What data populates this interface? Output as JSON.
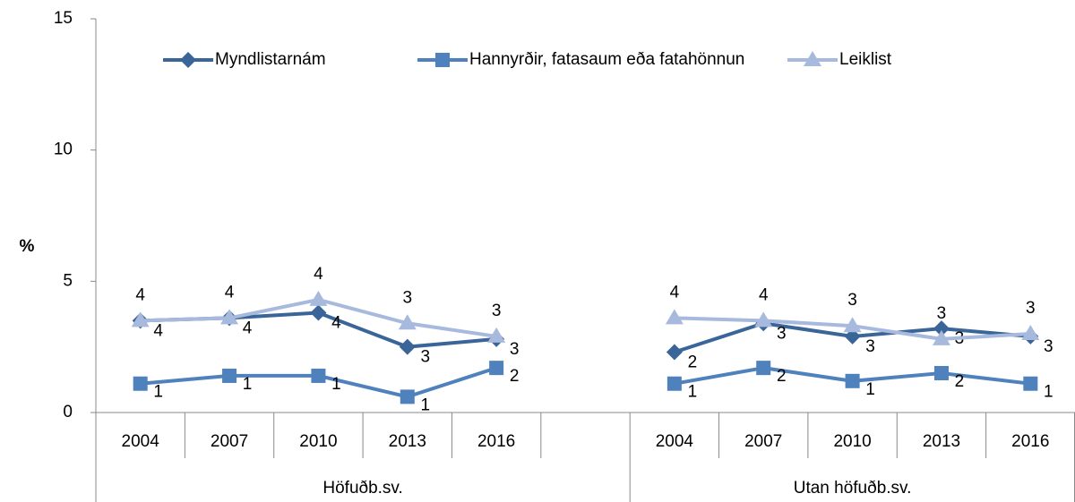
{
  "chart_data": {
    "type": "line",
    "y_label": "%",
    "categories": [
      "2004",
      "2007",
      "2010",
      "2013",
      "2016",
      null,
      "2004",
      "2007",
      "2010",
      "2013",
      "2016"
    ],
    "groups": [
      {
        "label": "Höfuðb.sv.",
        "span": 6
      },
      {
        "label": "Utan höfuðb.sv.",
        "span": 5
      }
    ],
    "series": [
      {
        "name": "Myndlistarnám",
        "color": "#3a6599",
        "marker": "diamond",
        "values": [
          3.5,
          3.6,
          3.8,
          2.5,
          2.8,
          null,
          2.3,
          3.4,
          2.9,
          3.2,
          2.9
        ],
        "value_labels": [
          "4",
          "4",
          "4",
          "3",
          "3",
          null,
          "2",
          "3",
          "3",
          "3",
          "3"
        ]
      },
      {
        "name": "Hannyrðir, fatasaum eða fatahönnun",
        "color": "#4f81bd",
        "marker": "square",
        "values": [
          1.1,
          1.4,
          1.4,
          0.6,
          1.7,
          null,
          1.1,
          1.7,
          1.2,
          1.5,
          1.1
        ],
        "value_labels": [
          "1",
          "1",
          "1",
          "1",
          "2",
          null,
          "1",
          "2",
          "1",
          "2",
          "1"
        ]
      },
      {
        "name": "Leiklist",
        "color": "#a7b9dd",
        "marker": "triangle",
        "values": [
          3.5,
          3.6,
          4.3,
          3.4,
          2.9,
          null,
          3.6,
          3.5,
          3.3,
          2.8,
          3.0
        ],
        "value_labels": [
          "4",
          "4",
          "4",
          "3",
          "3",
          null,
          "4",
          "4",
          "3",
          "3",
          "3"
        ]
      }
    ],
    "ylim": [
      0,
      15
    ],
    "yticks": [
      0,
      5,
      10,
      15
    ],
    "grid": false,
    "legend": "top"
  }
}
